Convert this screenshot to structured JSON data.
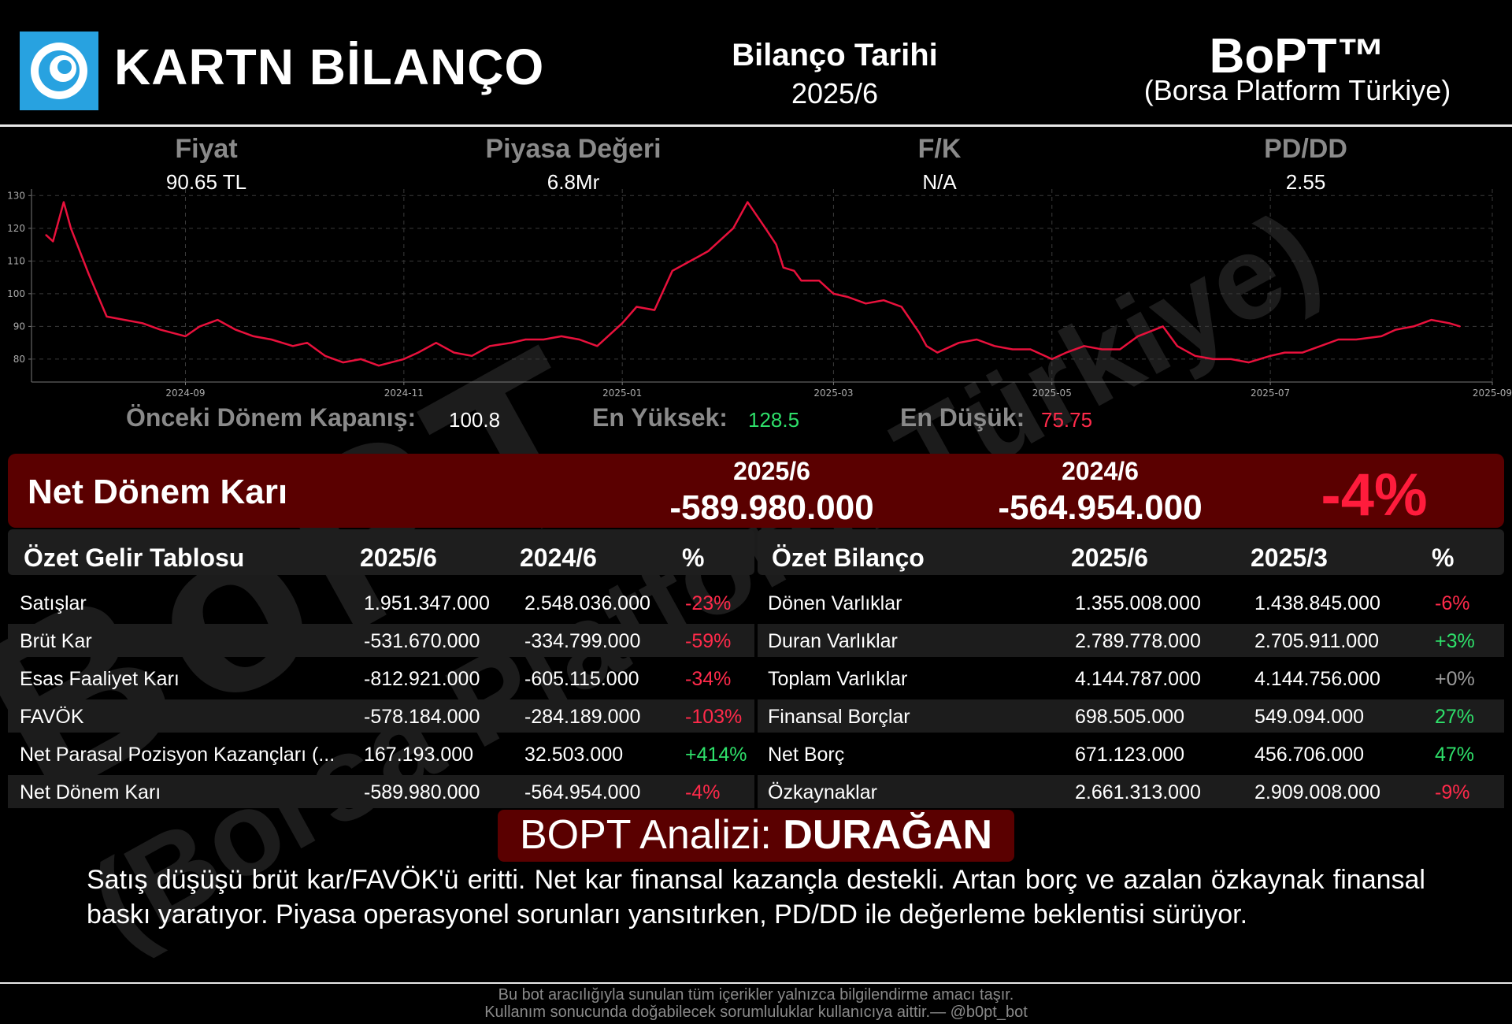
{
  "header": {
    "title": "KARTN BİLANÇO",
    "balance_date_label": "Bilanço Tarihi",
    "balance_date": "2025/6",
    "brand": "BoPT™",
    "brand_sub": "(Borsa Platform Türkiye)"
  },
  "watermark": {
    "line1": "BoPT",
    "line2": "(Borsa Platform Türkiye)"
  },
  "metrics": [
    {
      "label": "Fiyat",
      "value": "90.65 TL"
    },
    {
      "label": "Piyasa Değeri",
      "value": "6.8Mr"
    },
    {
      "label": "F/K",
      "value": "N/A"
    },
    {
      "label": "PD/DD",
      "value": "2.55"
    }
  ],
  "stats": {
    "prev_close_label": "Önceki Dönem Kapanış:",
    "prev_close": "100.8",
    "high_label": "En Yüksek:",
    "high": "128.5",
    "low_label": "En Düşük:",
    "low": "75.75"
  },
  "chart_data": {
    "type": "line",
    "series": [
      {
        "x": [
          "2024-07-24",
          "2024-07-26",
          "2024-07-29",
          "2024-07-31",
          "2024-08-05",
          "2024-08-10",
          "2024-08-15",
          "2024-08-20",
          "2024-08-25",
          "2024-09-01",
          "2024-09-05",
          "2024-09-10",
          "2024-09-15",
          "2024-09-20",
          "2024-09-25",
          "2024-10-01",
          "2024-10-05",
          "2024-10-10",
          "2024-10-15",
          "2024-10-20",
          "2024-10-25",
          "2024-11-01",
          "2024-11-05",
          "2024-11-10",
          "2024-11-15",
          "2024-11-20",
          "2024-11-25",
          "2024-12-01",
          "2024-12-05",
          "2024-12-10",
          "2024-12-15",
          "2024-12-20",
          "2024-12-25",
          "2025-01-01",
          "2025-01-05",
          "2025-01-10",
          "2025-01-15",
          "2025-01-20",
          "2025-01-25",
          "2025-02-01",
          "2025-02-05",
          "2025-02-10",
          "2025-02-13",
          "2025-02-15",
          "2025-02-18",
          "2025-02-20",
          "2025-02-25",
          "2025-03-01",
          "2025-03-05",
          "2025-03-10",
          "2025-03-15",
          "2025-03-20",
          "2025-03-25",
          "2025-03-27",
          "2025-03-30",
          "2025-04-05",
          "2025-04-10",
          "2025-04-15",
          "2025-04-20",
          "2025-04-25",
          "2025-05-01",
          "2025-05-05",
          "2025-05-10",
          "2025-05-15",
          "2025-05-20",
          "2025-05-25",
          "2025-06-01",
          "2025-06-05",
          "2025-06-10",
          "2025-06-15",
          "2025-06-20",
          "2025-06-25",
          "2025-07-01",
          "2025-07-05",
          "2025-07-10",
          "2025-07-15",
          "2025-07-20",
          "2025-07-25",
          "2025-08-01",
          "2025-08-05",
          "2025-08-10",
          "2025-08-15",
          "2025-08-20",
          "2025-08-23"
        ],
        "y": [
          118,
          116,
          128,
          120,
          106,
          93,
          92,
          91,
          89,
          87,
          90,
          92,
          89,
          87,
          86,
          84,
          85,
          81,
          79,
          80,
          78,
          80,
          82,
          85,
          82,
          81,
          84,
          85,
          86,
          86,
          87,
          86,
          84,
          91,
          96,
          95,
          107,
          110,
          113,
          120,
          128,
          120,
          115,
          108,
          107,
          104,
          104,
          100,
          99,
          97,
          98,
          96,
          88,
          84,
          82,
          85,
          86,
          84,
          83,
          83,
          80,
          82,
          84,
          83,
          83,
          87,
          90,
          84,
          81,
          80,
          80,
          79,
          81,
          82,
          82,
          84,
          86,
          86,
          87,
          89,
          90,
          92,
          91,
          90
        ]
      }
    ],
    "xlim": [
      "2024-07-20",
      "2025-09-01"
    ],
    "xticks": [
      "2024-09",
      "2024-11",
      "2025-01",
      "2025-03",
      "2025-05",
      "2025-07",
      "2025-09"
    ],
    "ylim": [
      73,
      132
    ],
    "yticks": [
      80,
      90,
      100,
      110,
      120,
      130
    ],
    "grid": true,
    "line_color": "#e8113c"
  },
  "net_profit": {
    "title": "Net Dönem Karı",
    "period1": "2025/6",
    "value1": "-589.980.000",
    "period2": "2024/6",
    "value2": "-564.954.000",
    "change": "-4%"
  },
  "income": {
    "title": "Özet Gelir Tablosu",
    "col1": "2025/6",
    "col2": "2024/6",
    "col3": "%",
    "rows": [
      {
        "name": "Satışlar",
        "v1": "1.951.347.000",
        "v2": "2.548.036.000",
        "pct": "-23%",
        "tone": "red"
      },
      {
        "name": "Brüt Kar",
        "v1": "-531.670.000",
        "v2": "-334.799.000",
        "pct": "-59%",
        "tone": "red"
      },
      {
        "name": "Esas Faaliyet Karı",
        "v1": "-812.921.000",
        "v2": "-605.115.000",
        "pct": "-34%",
        "tone": "red"
      },
      {
        "name": "FAVÖK",
        "v1": "-578.184.000",
        "v2": "-284.189.000",
        "pct": "-103%",
        "tone": "red"
      },
      {
        "name": "Net Parasal Pozisyon Kazançları (...",
        "v1": "167.193.000",
        "v2": "32.503.000",
        "pct": "+414%",
        "tone": "green"
      },
      {
        "name": "Net Dönem Karı",
        "v1": "-589.980.000",
        "v2": "-564.954.000",
        "pct": "-4%",
        "tone": "red"
      }
    ]
  },
  "balance": {
    "title": "Özet Bilanço",
    "col1": "2025/6",
    "col2": "2025/3",
    "col3": "%",
    "rows": [
      {
        "name": "Dönen Varlıklar",
        "v1": "1.355.008.000",
        "v2": "1.438.845.000",
        "pct": "-6%",
        "tone": "red"
      },
      {
        "name": "Duran Varlıklar",
        "v1": "2.789.778.000",
        "v2": "2.705.911.000",
        "pct": "+3%",
        "tone": "green"
      },
      {
        "name": "Toplam Varlıklar",
        "v1": "4.144.787.000",
        "v2": "4.144.756.000",
        "pct": "+0%",
        "tone": "grey"
      },
      {
        "name": "Finansal Borçlar",
        "v1": "698.505.000",
        "v2": "549.094.000",
        "pct": "27%",
        "tone": "green"
      },
      {
        "name": "Net Borç",
        "v1": "671.123.000",
        "v2": "456.706.000",
        "pct": "47%",
        "tone": "green"
      },
      {
        "name": "Özkaynaklar",
        "v1": "2.661.313.000",
        "v2": "2.909.008.000",
        "pct": "-9%",
        "tone": "red"
      }
    ]
  },
  "analysis": {
    "label": "BOPT Analizi:",
    "verdict": "DURAĞAN",
    "text": "Satış düşüşü brüt kar/FAVÖK'ü eritti. Net kar finansal kazançla destekli. Artan borç ve azalan özkaynak finansal baskı yaratıyor. Piyasa operasyonel sorunları yansıtırken, PD/DD ile değerleme beklentisi sürüyor."
  },
  "footer": {
    "line1": "Bu bot aracılığıyla sunulan tüm içerikler yalnızca bilgilendirme amacı taşır.",
    "line2": "Kullanım sonucunda doğabilecek sorumluluklar kullanıcıya aittir.— @b0pt_bot"
  }
}
